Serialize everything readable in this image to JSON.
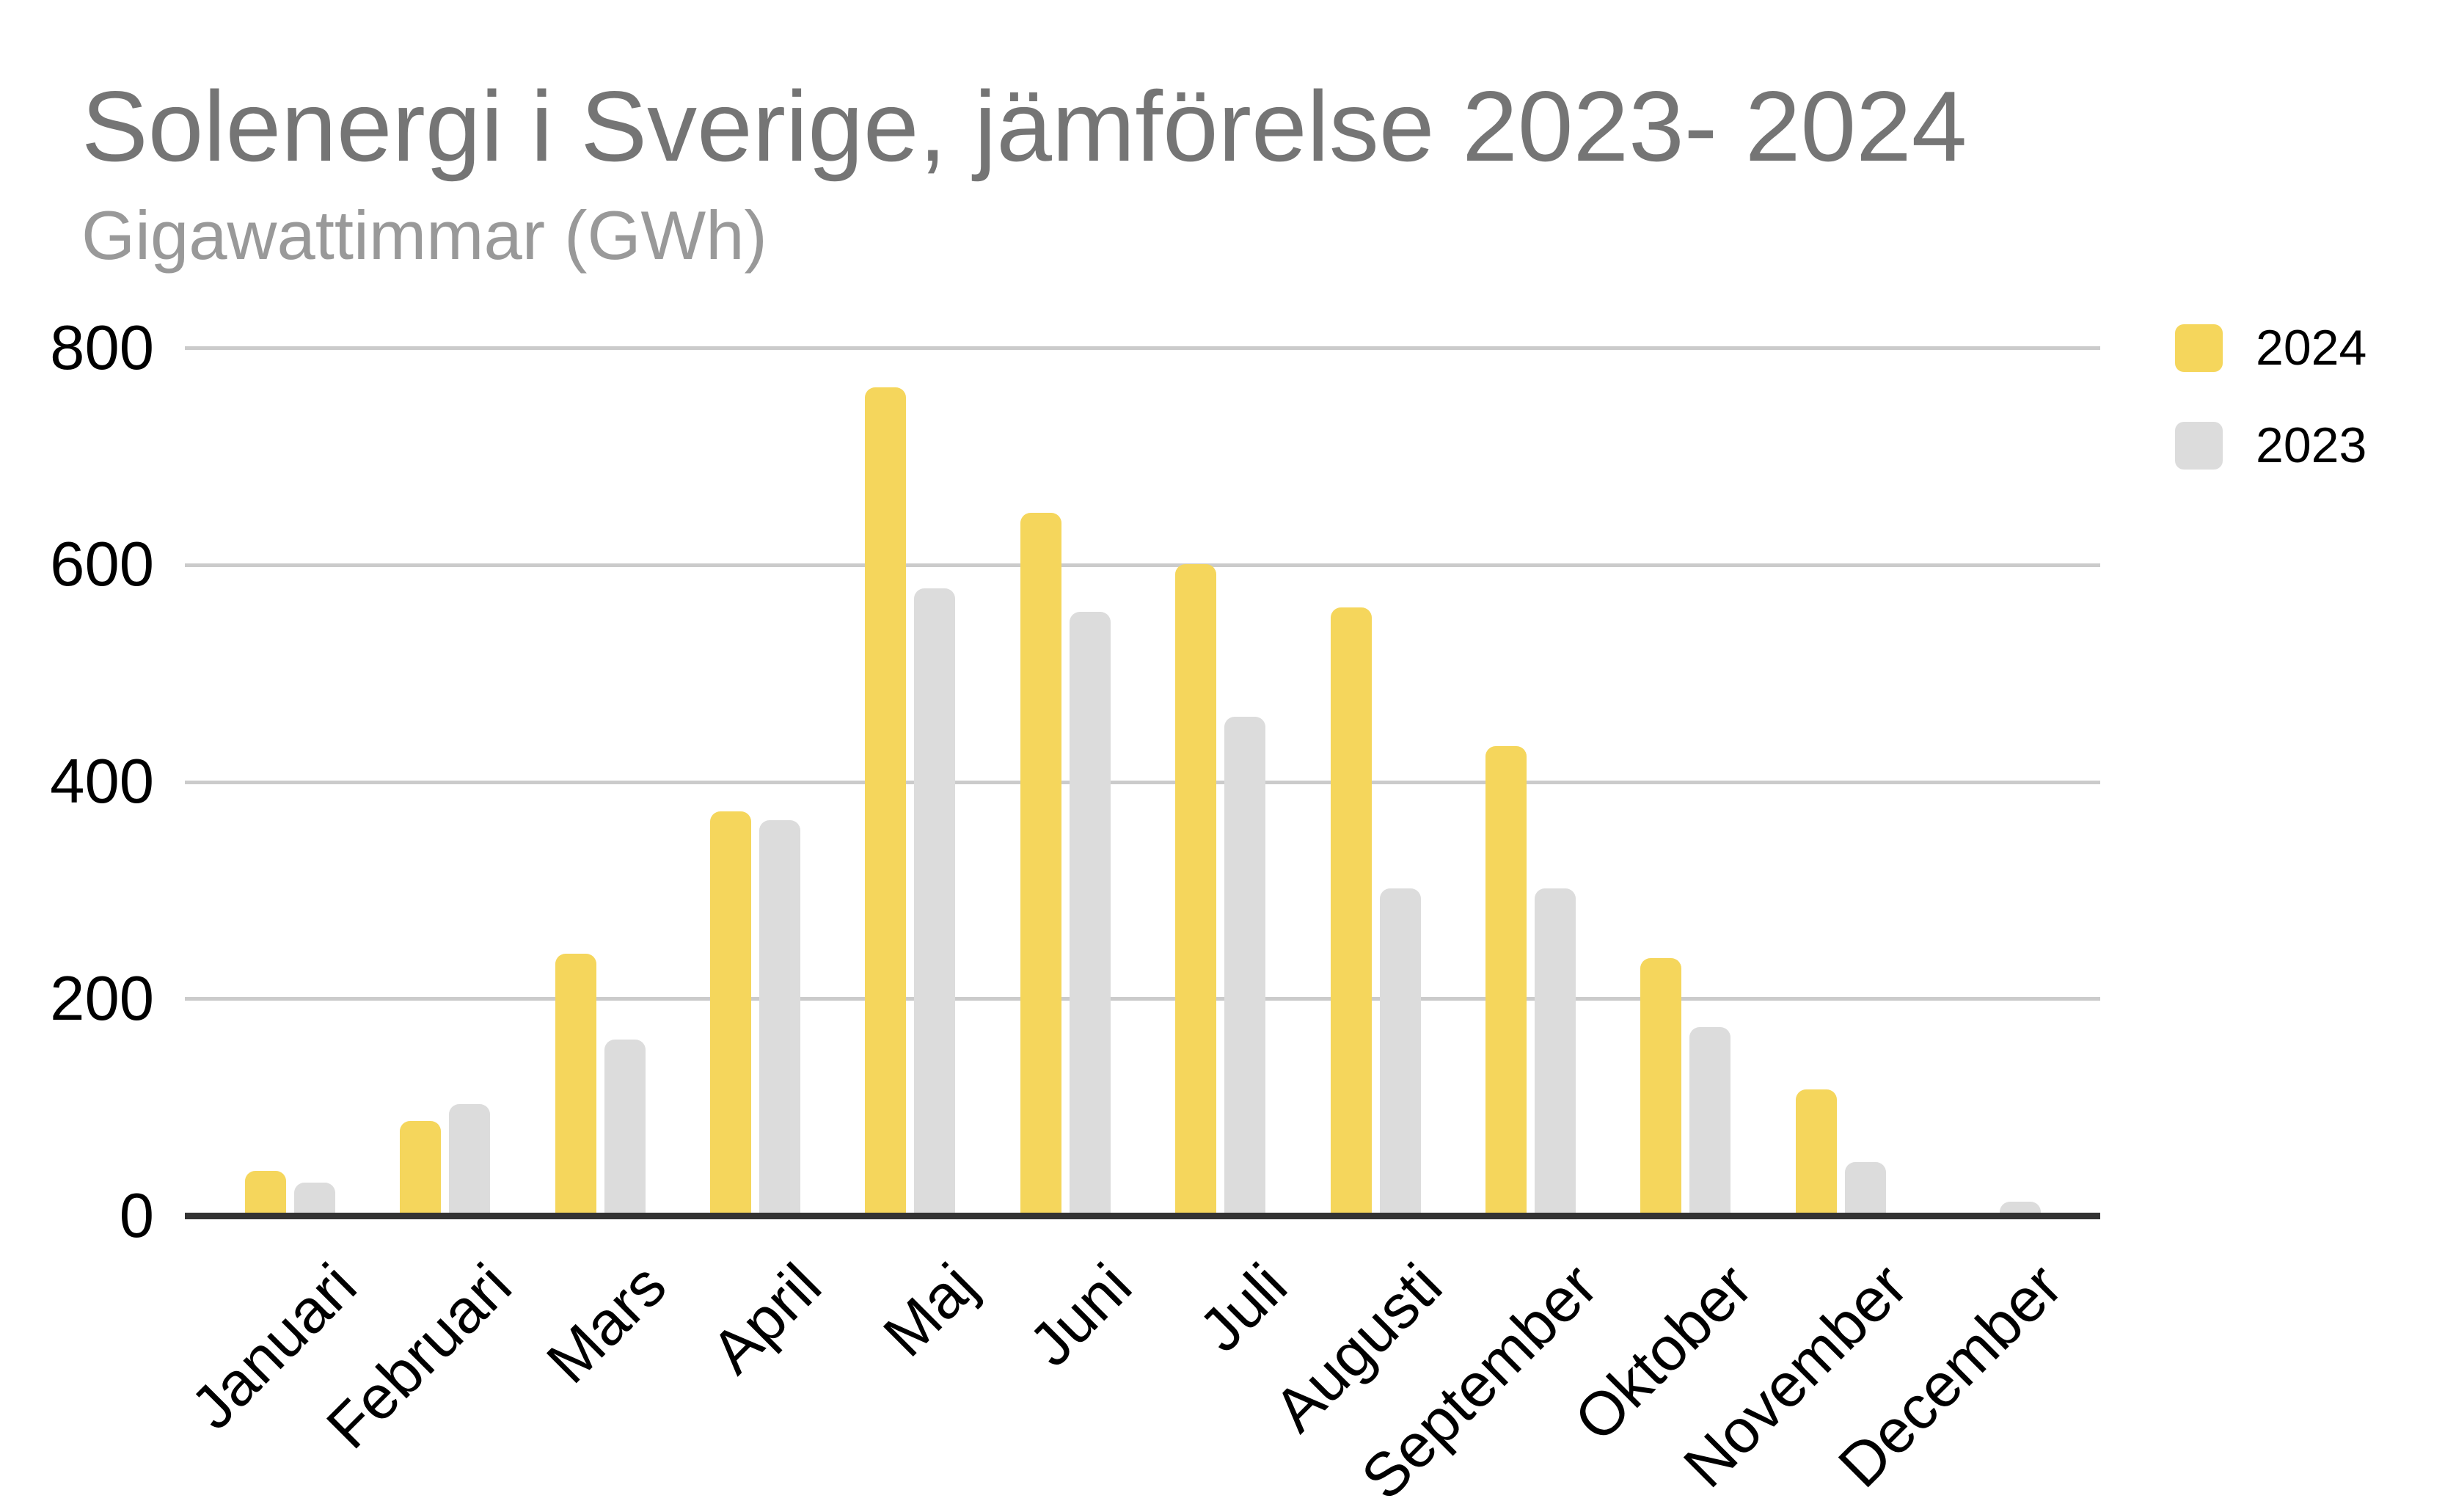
{
  "chart_data": {
    "type": "bar",
    "title": "Solenergi i Sverige, jämförelse 2023- 2024",
    "subtitle": "Gigawattimmar (GWh)",
    "categories": [
      "Januari",
      "Februari",
      "Mars",
      "April",
      "Maj",
      "Juni",
      "Juli",
      "Augusti",
      "September",
      "Oktober",
      "November",
      "December"
    ],
    "series": [
      {
        "name": "2024",
        "color": "#F5D65C",
        "values": [
          42,
          88,
          242,
          373,
          764,
          648,
          601,
          561,
          433,
          238,
          117,
          0
        ]
      },
      {
        "name": "2023",
        "color": "#DCDCDC",
        "values": [
          31,
          103,
          163,
          365,
          579,
          557,
          460,
          302,
          302,
          174,
          50,
          13
        ]
      }
    ],
    "ylabel": "",
    "xlabel": "",
    "ylim": [
      0,
      800
    ],
    "yticks": [
      0,
      200,
      400,
      600,
      800
    ],
    "grid": "horizontal",
    "legend_position": "right-top",
    "colors": {
      "background": "#FFFFFF",
      "title": "#757575",
      "subtitle": "#999999",
      "axis_labels": "#000000",
      "gridline": "#CBCBCB",
      "baseline": "#333333"
    }
  }
}
